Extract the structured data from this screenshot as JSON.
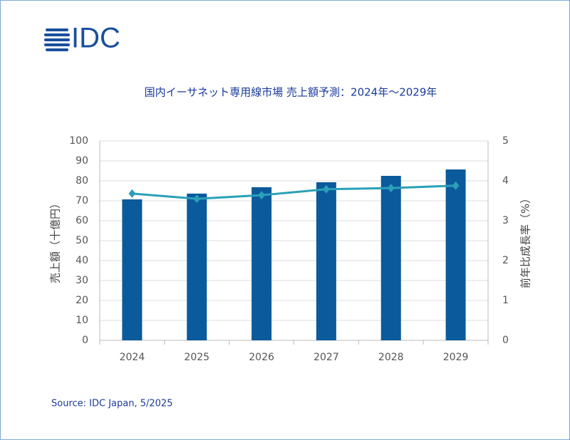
{
  "logo": "IDC",
  "chart_data": {
    "type": "bar-line",
    "title": "国内イーサネット専用線市場 売上額予測：2024年～2029年",
    "ylabel": "売上額（十億円）",
    "y2label": "前年比成長率（%）",
    "categories": [
      "2024",
      "2025",
      "2026",
      "2027",
      "2028",
      "2029"
    ],
    "series": [
      {
        "type": "bar",
        "color": "#0b5a9c",
        "values": [
          70.7,
          73.6,
          76.8,
          79.3,
          82.5,
          85.7
        ]
      },
      {
        "type": "line",
        "axis": "y2",
        "color": "#2aa0b8",
        "values": [
          3.68,
          3.55,
          3.64,
          3.79,
          3.82,
          3.88
        ]
      }
    ],
    "ylim": [
      0,
      100
    ],
    "yticks": [
      0,
      10,
      20,
      30,
      40,
      50,
      60,
      70,
      80,
      90,
      100
    ],
    "y2lim": [
      0,
      5
    ],
    "y2ticks": [
      0,
      1,
      2,
      3,
      4,
      5
    ],
    "grid": true
  },
  "source": "Source: IDC Japan, 5/2025"
}
